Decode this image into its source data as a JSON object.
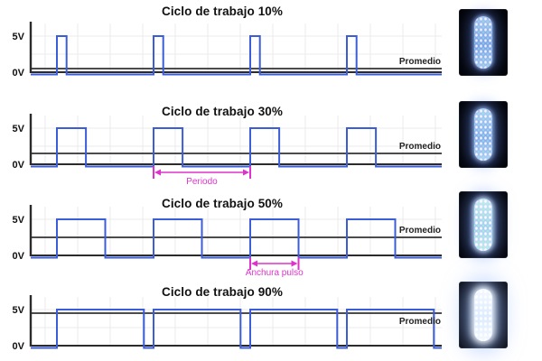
{
  "colors": {
    "signal": "#3b5dd8",
    "average": "#333333",
    "axis": "#2b2b2b",
    "grid": "#ebebeb",
    "annotation": "#dd33cc",
    "text": "#111111",
    "led_glow": "#9fc2ff"
  },
  "chart_data": [
    {
      "type": "line",
      "waveform": "square",
      "title": "Ciclo de trabajo 10%",
      "duty_cycle_pct": 10,
      "high_V": 5,
      "low_V": 0,
      "average_V": 0.5,
      "high_label": "5V",
      "low_label": "0V",
      "average_label": "Promedio",
      "periods_shown": 4,
      "grid": true,
      "annotation": null
    },
    {
      "type": "line",
      "waveform": "square",
      "title": "Ciclo de trabajo 30%",
      "duty_cycle_pct": 30,
      "high_V": 5,
      "low_V": 0,
      "average_V": 1.5,
      "high_label": "5V",
      "low_label": "0V",
      "average_label": "Promedio",
      "periods_shown": 4,
      "grid": true,
      "annotation": {
        "kind": "period",
        "label": "Periodo"
      }
    },
    {
      "type": "line",
      "waveform": "square",
      "title": "Ciclo de trabajo 50%",
      "duty_cycle_pct": 50,
      "high_V": 5,
      "low_V": 0,
      "average_V": 2.5,
      "high_label": "5V",
      "low_label": "0V",
      "average_label": "Promedio",
      "periods_shown": 4,
      "grid": true,
      "annotation": {
        "kind": "pulse_width",
        "label": "Anchura pulso"
      }
    },
    {
      "type": "line",
      "waveform": "square",
      "title": "Ciclo de trabajo 90%",
      "duty_cycle_pct": 90,
      "high_V": 5,
      "low_V": 0,
      "average_V": 4.5,
      "high_label": "5V",
      "low_label": "0V",
      "average_label": "Promedio",
      "periods_shown": 4,
      "grid": true,
      "annotation": null
    }
  ],
  "leds": [
    {
      "duty_cycle_pct": 10,
      "brightness_level": "dim"
    },
    {
      "duty_cycle_pct": 30,
      "brightness_level": "medium"
    },
    {
      "duty_cycle_pct": 50,
      "brightness_level": "bright"
    },
    {
      "duty_cycle_pct": 90,
      "brightness_level": "brightest"
    }
  ]
}
